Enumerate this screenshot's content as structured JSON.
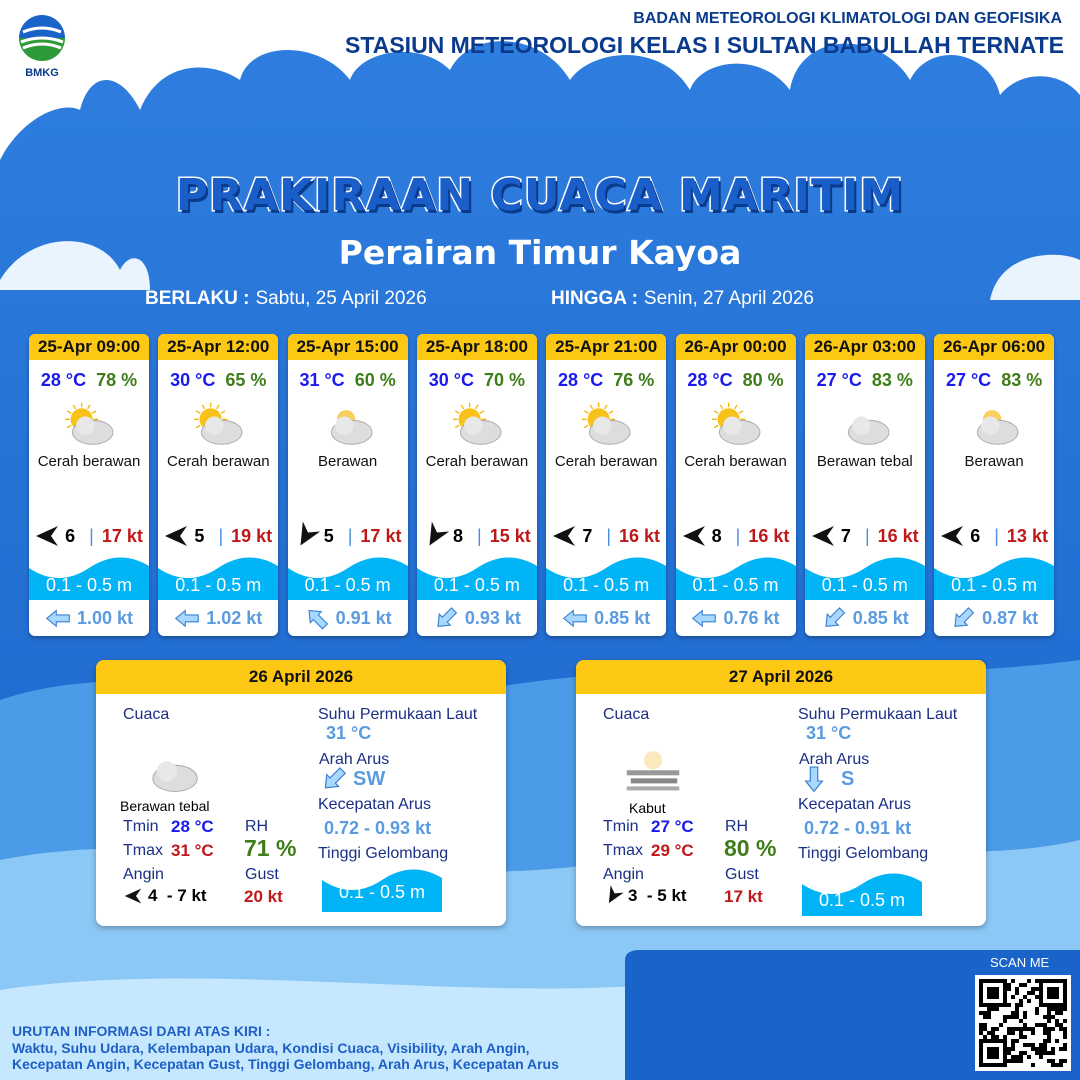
{
  "header": {
    "org": "BADAN METEOROLOGI KLIMATOLOGI DAN GEOFISIKA",
    "station": "STASIUN METEOROLOGI KELAS I SULTAN BABULLAH TERNATE",
    "logo_text": "BMKG"
  },
  "title": "PRAKIRAAN CUACA MARITIM",
  "subtitle": "Perairan Timur Kayoa",
  "validity": {
    "from_label": "BERLAKU :",
    "from": "Sabtu, 25 April 2026",
    "to_label": "HINGGA :",
    "to": "Senin, 27 April 2026"
  },
  "forecasts": [
    {
      "time": "25-Apr 09:00",
      "temp": "28 °C",
      "rh": "78 %",
      "icon": "sun-cloud-icon",
      "condition": "Cerah berawan",
      "wind_dir_deg": 0,
      "wind": "6",
      "gust": "17 kt",
      "wave": "0.1 - 0.5 m",
      "current_dir_deg": 0,
      "current": "1.00 kt"
    },
    {
      "time": "25-Apr 12:00",
      "temp": "30 °C",
      "rh": "65 %",
      "icon": "sun-cloud-icon",
      "condition": "Cerah berawan",
      "wind_dir_deg": 0,
      "wind": "5",
      "gust": "19 kt",
      "wave": "0.1 - 0.5 m",
      "current_dir_deg": 0,
      "current": "1.02 kt"
    },
    {
      "time": "25-Apr 15:00",
      "temp": "31 °C",
      "rh": "60 %",
      "icon": "cloud-icon",
      "condition": "Berawan",
      "wind_dir_deg": -60,
      "wind": "5",
      "gust": "17 kt",
      "wave": "0.1 - 0.5 m",
      "current_dir_deg": 45,
      "current": "0.91 kt"
    },
    {
      "time": "25-Apr 18:00",
      "temp": "30 °C",
      "rh": "70 %",
      "icon": "sun-cloud-icon",
      "condition": "Cerah berawan",
      "wind_dir_deg": -60,
      "wind": "8",
      "gust": "15 kt",
      "wave": "0.1 - 0.5 m",
      "current_dir_deg": -45,
      "current": "0.93 kt"
    },
    {
      "time": "25-Apr 21:00",
      "temp": "28 °C",
      "rh": "76 %",
      "icon": "sun-cloud-icon",
      "condition": "Cerah berawan",
      "wind_dir_deg": 0,
      "wind": "7",
      "gust": "16 kt",
      "wave": "0.1 - 0.5 m",
      "current_dir_deg": 0,
      "current": "0.85 kt"
    },
    {
      "time": "26-Apr 00:00",
      "temp": "28 °C",
      "rh": "80 %",
      "icon": "sun-cloud-icon",
      "condition": "Cerah berawan",
      "wind_dir_deg": 0,
      "wind": "8",
      "gust": "16 kt",
      "wave": "0.1 - 0.5 m",
      "current_dir_deg": 0,
      "current": "0.76 kt"
    },
    {
      "time": "26-Apr 03:00",
      "temp": "27 °C",
      "rh": "83 %",
      "icon": "thick-cloud-icon",
      "condition": "Berawan tebal",
      "wind_dir_deg": 0,
      "wind": "7",
      "gust": "16 kt",
      "wave": "0.1 - 0.5 m",
      "current_dir_deg": -45,
      "current": "0.85 kt"
    },
    {
      "time": "26-Apr 06:00",
      "temp": "27 °C",
      "rh": "83 %",
      "icon": "cloud-icon",
      "condition": "Berawan",
      "wind_dir_deg": 0,
      "wind": "6",
      "gust": "13 kt",
      "wave": "0.1 - 0.5 m",
      "current_dir_deg": -45,
      "current": "0.87 kt"
    }
  ],
  "daily": [
    {
      "date": "26 April 2026",
      "weather_label": "Cuaca",
      "icon": "thick-cloud-icon",
      "condition": "Berawan tebal",
      "tmin_label": "Tmin",
      "tmin": "28 °C",
      "tmax_label": "Tmax",
      "tmax": "31 °C",
      "rh_label": "RH",
      "rh": "71 %",
      "wind_label": "Angin",
      "wind_dir_deg": 0,
      "wind": "4  - 7 kt",
      "gust_label": "Gust",
      "gust": "20 kt",
      "sst_label": "Suhu Permukaan Laut",
      "sst": "31 °C",
      "current_dir_label": "Arah Arus",
      "current_dir_deg": -45,
      "current_dir": "SW",
      "current_speed_label": "Kecepatan Arus",
      "current_speed": "0.72 - 0.93 kt",
      "wave_label": "Tinggi Gelombang",
      "wave": "0.1 - 0.5 m"
    },
    {
      "date": "27 April 2026",
      "weather_label": "Cuaca",
      "icon": "fog-icon",
      "condition": "Kabut",
      "tmin_label": "Tmin",
      "tmin": "27 °C",
      "tmax_label": "Tmax",
      "tmax": "29 °C",
      "rh_label": "RH",
      "rh": "80 %",
      "wind_label": "Angin",
      "wind_dir_deg": -60,
      "wind": "3  - 5 kt",
      "gust_label": "Gust",
      "gust": "17 kt",
      "sst_label": "Suhu Permukaan Laut",
      "sst": "31 °C",
      "current_dir_label": "Arah Arus",
      "current_dir_deg": -90,
      "current_dir": "S",
      "current_speed_label": "Kecepatan Arus",
      "current_speed": "0.72 - 0.91 kt",
      "wave_label": "Tinggi Gelombang",
      "wave": "0.1 - 0.5 m"
    }
  ],
  "qr": {
    "label": "SCAN ME"
  },
  "footer": {
    "heading": "URUTAN INFORMASI DARI ATAS KIRI :",
    "line1": "Waktu, Suhu Udara, Kelembapan Udara, Kondisi Cuaca, Visibility, Arah Angin,",
    "line2": "Kecepatan Angin, Kecepatan Gust, Tinggi Gelombang, Arah Arus, Kecepatan Arus"
  },
  "colors": {
    "header_yellow": "#fcc814",
    "sea_blue": "#00b4f5",
    "temp_blue": "#1a1af0",
    "rh_green": "#3f7d1a",
    "gust_red": "#c01818"
  }
}
